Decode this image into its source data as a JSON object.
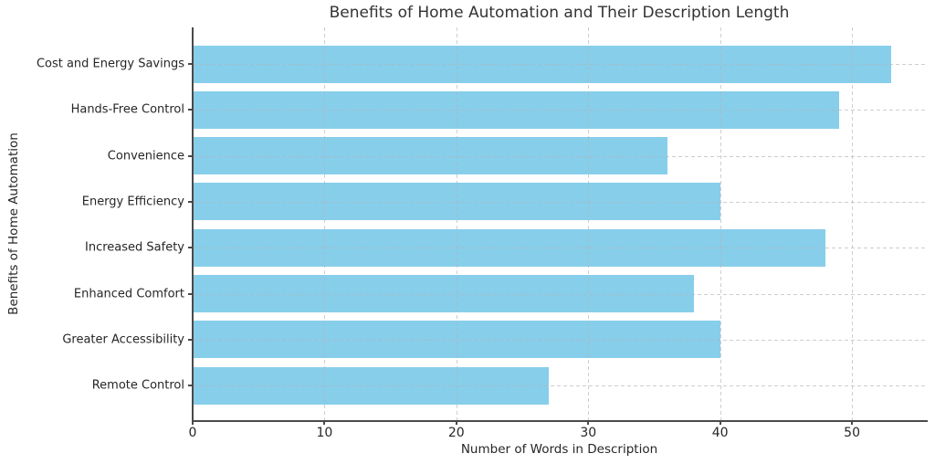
{
  "chart_data": {
    "type": "bar",
    "orientation": "horizontal",
    "title": "Benefits of Home Automation and Their Description Length",
    "xlabel": "Number of Words in Description",
    "ylabel": "Benefits of Home Automation",
    "categories": [
      "Cost and Energy Savings",
      "Hands-Free Control",
      "Convenience",
      "Energy Efficiency",
      "Increased Safety",
      "Enhanced Comfort",
      "Greater Accessibility",
      "Remote Control"
    ],
    "values": [
      53,
      49,
      36,
      40,
      48,
      38,
      40,
      27
    ],
    "xticks": [
      0,
      10,
      20,
      30,
      40,
      50
    ],
    "xlim": [
      0,
      55.6
    ],
    "grid": true,
    "legend": "none",
    "bar_color": "#87CEEB",
    "grid_color": "#b4b4b4",
    "spine_color": "#4a4a4a",
    "text_color": "#262626"
  }
}
